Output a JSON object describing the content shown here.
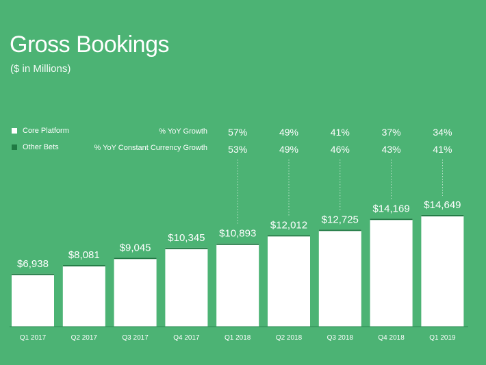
{
  "title": "Gross Bookings",
  "subtitle": "($ in Millions)",
  "legend": [
    {
      "label": "Core Platform",
      "color": "#ffffff"
    },
    {
      "label": "Other Bets",
      "color": "#1f7a43"
    }
  ],
  "metric_labels": {
    "yoy": "% YoY Growth",
    "yoy_cc": "% YoY Constant Currency Growth"
  },
  "colors": {
    "background": "#4cb374",
    "core": "#ffffff",
    "other": "#1f7a43"
  },
  "chart_data": {
    "type": "bar",
    "title": "Gross Bookings",
    "ylabel": "$ in Millions",
    "categories": [
      "Q1 2017",
      "Q2 2017",
      "Q3 2017",
      "Q4 2017",
      "Q1 2018",
      "Q2 2018",
      "Q3 2018",
      "Q4 2018",
      "Q1 2019"
    ],
    "values": [
      6938,
      8081,
      9045,
      10345,
      10893,
      12012,
      12725,
      14169,
      14649
    ],
    "value_labels": [
      "$6,938",
      "$8,081",
      "$9,045",
      "$10,345",
      "$10,893",
      "$12,012",
      "$12,725",
      "$14,169",
      "$14,649"
    ],
    "yoy_growth": [
      "",
      "",
      "",
      "",
      "57%",
      "49%",
      "41%",
      "37%",
      "34%"
    ],
    "yoy_cc_growth": [
      "",
      "",
      "",
      "",
      "53%",
      "49%",
      "46%",
      "43%",
      "41%"
    ],
    "ylim": [
      0,
      16000
    ]
  }
}
